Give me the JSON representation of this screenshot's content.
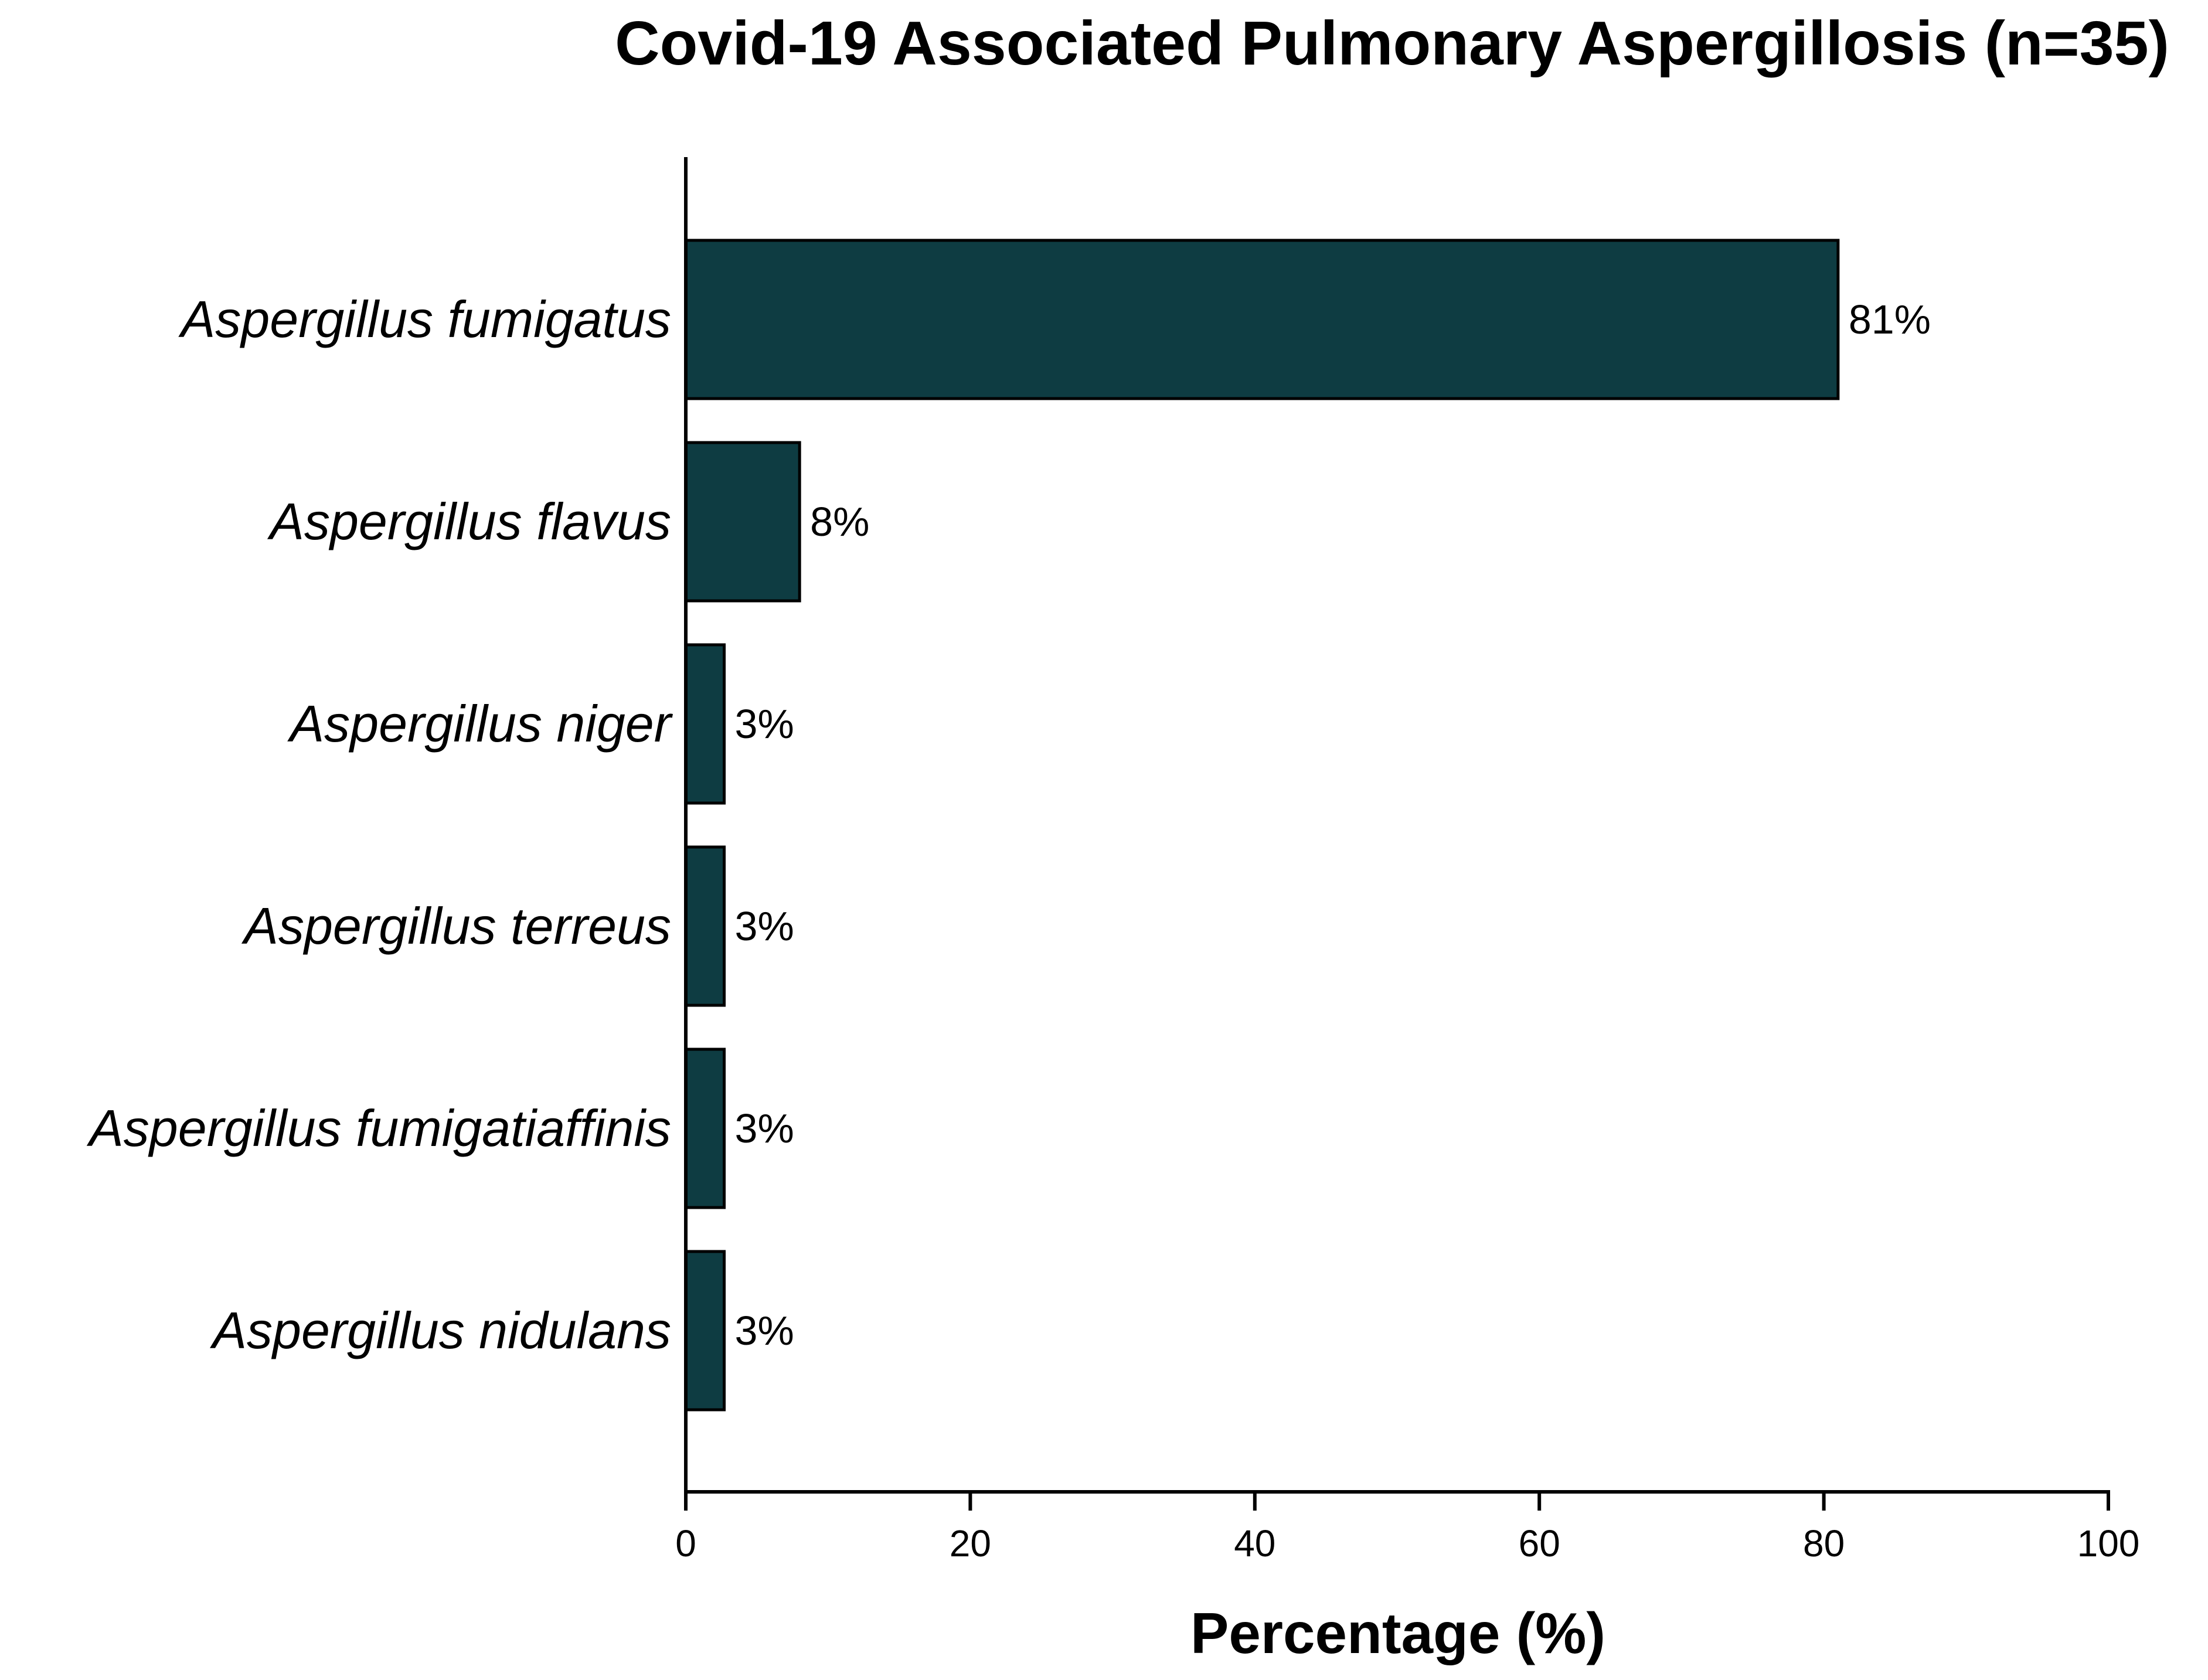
{
  "chart_data": {
    "type": "bar",
    "orientation": "horizontal",
    "title": "Covid-19 Associated Pulmonary Aspergillosis (n=35)",
    "xlabel": "Percentage (%)",
    "ylabel": "",
    "xlim": [
      0,
      100
    ],
    "xticks": [
      0,
      20,
      40,
      60,
      80,
      100
    ],
    "grid": false,
    "categories": [
      "Aspergillus fumigatus",
      "Aspergillus flavus",
      "Aspergillus niger",
      "Aspergillus terreus",
      "Aspergillus fumigatiaffinis",
      "Aspergillus nidulans"
    ],
    "values": [
      81,
      8,
      2.7,
      2.7,
      2.7,
      2.7
    ],
    "value_labels": [
      "81%",
      "8%",
      "3%",
      "3%",
      "3%",
      "3%"
    ],
    "bar_color": "#0e3c42"
  }
}
